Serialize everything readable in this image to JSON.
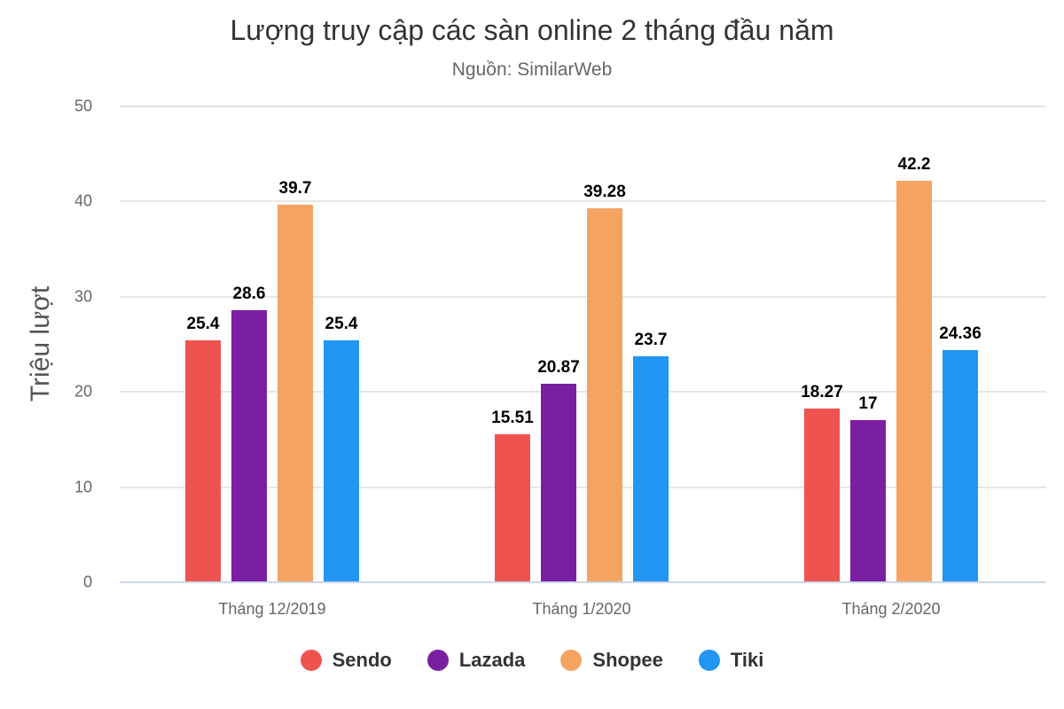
{
  "title": "Lượng truy cập các sàn online 2 tháng đầu năm",
  "subtitle": "Nguồn: SimilarWeb",
  "yaxis_label": "Triệu lượt",
  "yticks": [
    "0",
    "10",
    "20",
    "30",
    "40",
    "50"
  ],
  "chart_data": {
    "type": "bar",
    "title": "Lượng truy cập các sàn online 2 tháng đầu năm",
    "subtitle": "Nguồn: SimilarWeb",
    "xlabel": "",
    "ylabel": "Triệu lượt",
    "ylim": [
      0,
      50
    ],
    "yticks": [
      0,
      10,
      20,
      30,
      40,
      50
    ],
    "grid": true,
    "legend_position": "bottom",
    "categories": [
      "Tháng 12/2019",
      "Tháng 1/2020",
      "Tháng 2/2020"
    ],
    "series": [
      {
        "name": "Sendo",
        "color": "#ef5350",
        "values": [
          25.4,
          15.51,
          18.27
        ],
        "labels": [
          "25.4",
          "15.51",
          "18.27"
        ]
      },
      {
        "name": "Lazada",
        "color": "#7b1fa2",
        "values": [
          28.6,
          20.87,
          17
        ],
        "labels": [
          "28.6",
          "20.87",
          "17"
        ]
      },
      {
        "name": "Shopee",
        "color": "#f4a460",
        "values": [
          39.7,
          39.28,
          42.2
        ],
        "labels": [
          "39.7",
          "39.28",
          "42.2"
        ]
      },
      {
        "name": "Tiki",
        "color": "#2196f3",
        "values": [
          25.4,
          23.7,
          24.36
        ],
        "labels": [
          "25.4",
          "23.7",
          "24.36"
        ]
      }
    ]
  }
}
